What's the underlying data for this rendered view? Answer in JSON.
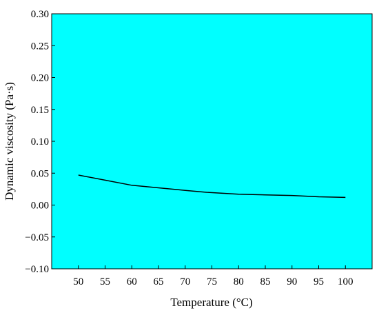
{
  "chart_data": {
    "type": "line",
    "title": "",
    "xlabel": "Temperature (°C)",
    "ylabel": "Dynamic viscosity (Pa·s)",
    "xlim": [
      45,
      105
    ],
    "ylim": [
      -0.1,
      0.3
    ],
    "xticks": [
      50,
      55,
      60,
      65,
      70,
      75,
      80,
      85,
      90,
      95,
      100
    ],
    "yticks": [
      -0.1,
      -0.05,
      0.0,
      0.05,
      0.1,
      0.15,
      0.2,
      0.25,
      0.3
    ],
    "xtick_labels": [
      "50",
      "55",
      "60",
      "65",
      "70",
      "75",
      "80",
      "85",
      "90",
      "95",
      "100"
    ],
    "ytick_labels": [
      "−0.10",
      "−0.05",
      "0.00",
      "0.05",
      "0.10",
      "0.15",
      "0.20",
      "0.25",
      "0.30"
    ],
    "grid": false,
    "plot_background": "#00FFFF",
    "series": [
      {
        "color": "#000000",
        "x": [
          50,
          55,
          60,
          65,
          70,
          74,
          80,
          85,
          90,
          95,
          100
        ],
        "y": [
          0.047,
          0.039,
          0.031,
          0.027,
          0.023,
          0.02,
          0.017,
          0.016,
          0.015,
          0.013,
          0.012
        ]
      }
    ]
  }
}
